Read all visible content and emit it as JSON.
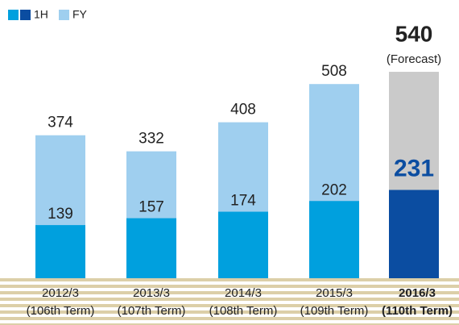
{
  "chart_data": {
    "type": "bar",
    "categories": [
      "2012/3",
      "2013/3",
      "2014/3",
      "2015/3",
      "2016/3"
    ],
    "terms": [
      "(106th Term)",
      "(107th Term)",
      "(108th Term)",
      "(109th Term)",
      "(110th Term)"
    ],
    "series": [
      {
        "name": "1H",
        "colors": [
          "#00a0de",
          "#00a0de",
          "#00a0de",
          "#00a0de",
          "#0b4da1"
        ],
        "values": [
          139,
          157,
          174,
          202,
          231
        ]
      },
      {
        "name": "FY",
        "colors": [
          "#9fcfef",
          "#9fcfef",
          "#9fcfef",
          "#9fcfef",
          "#cacaca"
        ],
        "values": [
          374,
          332,
          408,
          508,
          540
        ]
      }
    ],
    "highlight": 4,
    "annotation": "(Forecast)"
  }
}
